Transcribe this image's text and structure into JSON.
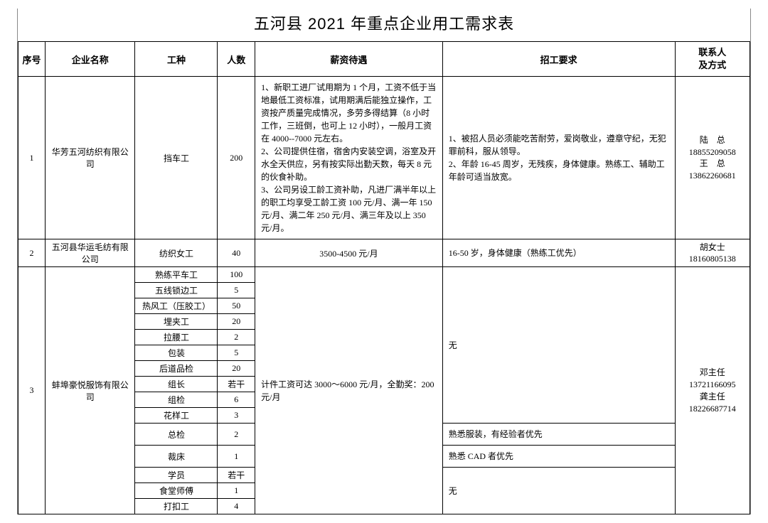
{
  "title": "五河县 2021 年重点企业用工需求表",
  "columns": {
    "idx": "序号",
    "company": "企业名称",
    "job": "工种",
    "count": "人数",
    "pay": "薪资待遇",
    "req": "招工要求",
    "contact": "联系人\n及方式"
  },
  "rows": {
    "r1": {
      "idx": "1",
      "company": "华芳五河纺织有限公司",
      "job": "挡车工",
      "count": "200",
      "pay": "1、新职工进厂试用期为 1 个月，工资不低于当地最低工资标准，试用期满后能独立操作，工资按产质量完成情况，多劳多得结算（8 小时工作，三班倒，也可上 12 小时），一般月工资在 4000--7000 元左右。\n2、公司提供住宿，宿舍内安装空调，浴室及开水全天供应，另有按实际出勤天数，每天 8 元的伙食补助。\n3、公司另设工龄工资补助，凡进厂满半年以上的职工均享受工龄工资 100 元/月、满一年 150 元/月、满二年 250 元/月、满三年及以上 350 元/月。",
      "req": "1、被招人员必须能吃苦耐劳，爱岗敬业，遵章守纪，无犯罪前科，服从领导。\n2、年龄 16-45 周岁，无残疾，身体健康。熟练工、辅助工年龄可适当放宽。",
      "contact": "陆　总\n18855209058\n王　总\n13862260681"
    },
    "r2": {
      "idx": "2",
      "company": "五河县华运毛纺有限公司",
      "job": "纺织女工",
      "count": "40",
      "pay": "3500-4500 元/月",
      "req": "16-50 岁，身体健康（熟练工优先）",
      "contact": "胡女士\n18160805138"
    },
    "r3": {
      "idx": "3",
      "company": "蚌埠豪悦服饰有限公司",
      "pay": "计件工资可达 3000～6000 元/月，全勤奖：200 元/月",
      "contact": "邓主任\n13721166095\n龚主任\n18226687714",
      "req_none": "无",
      "req_fz": "熟悉服装，有经验者优先",
      "req_cad": "熟悉 CAD 者优先",
      "req_none2": "无",
      "jobs": {
        "j01": {
          "name": "熟练平车工",
          "cnt": "100"
        },
        "j02": {
          "name": "五线锁边工",
          "cnt": "5"
        },
        "j03": {
          "name": "热风工（压胶工）",
          "cnt": "50"
        },
        "j04": {
          "name": "埋夹工",
          "cnt": "20"
        },
        "j05": {
          "name": "拉腰工",
          "cnt": "2"
        },
        "j06": {
          "name": "包装",
          "cnt": "5"
        },
        "j07": {
          "name": "后道品检",
          "cnt": "20"
        },
        "j08": {
          "name": "组长",
          "cnt": "若干"
        },
        "j09": {
          "name": "组检",
          "cnt": "6"
        },
        "j10": {
          "name": "花样工",
          "cnt": "3"
        },
        "j11": {
          "name": "总检",
          "cnt": "2"
        },
        "j12": {
          "name": "裁床",
          "cnt": "1"
        },
        "j13": {
          "name": "学员",
          "cnt": "若干"
        },
        "j14": {
          "name": "食堂师傅",
          "cnt": "1"
        },
        "j15": {
          "name": "打扣工",
          "cnt": "4"
        }
      }
    }
  }
}
